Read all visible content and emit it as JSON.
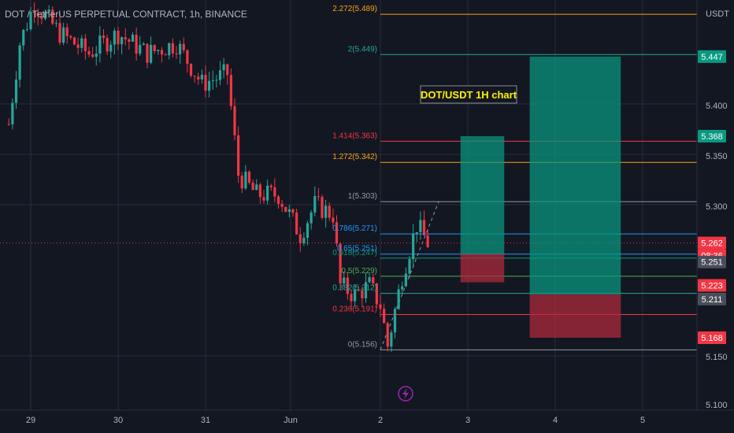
{
  "header": {
    "title": "DOT / TetherUS PERPETUAL CONTRACT, 1h, BINANCE"
  },
  "axis": {
    "unit": "USDT",
    "ticks": [
      "5.400",
      "5.350",
      "5.300",
      "5.150",
      "5.100"
    ],
    "x_labels": [
      "29",
      "30",
      "31",
      "Jun",
      "2",
      "3",
      "4",
      "5"
    ]
  },
  "annotation": {
    "text": "DOT/USDT 1H chart"
  },
  "fib_levels": [
    {
      "label": "2.272(5.489)",
      "color": "#f7a21b"
    },
    {
      "label": "2(5.449)",
      "color": "#26a69a"
    },
    {
      "label": "1.414(5.363)",
      "color": "#f23645"
    },
    {
      "label": "1.272(5.342)",
      "color": "#f7a21b"
    },
    {
      "label": "1(5.303)",
      "color": "#9598a1"
    },
    {
      "label": "0.786(5.271)",
      "color": "#2196f3"
    },
    {
      "label": "0.65(5.251)",
      "color": "#2196f3"
    },
    {
      "label": "0.618(5.247)",
      "color": "#089981"
    },
    {
      "label": "0.5(5.229)",
      "color": "#4caf50"
    },
    {
      "label": "0.382(5.212)",
      "color": "#26a69a"
    },
    {
      "label": "0.236(5.191)",
      "color": "#f23645"
    },
    {
      "label": "0(5.156)",
      "color": "#9598a1"
    }
  ],
  "price_badges": [
    {
      "text": "5.447",
      "color": "#089981"
    },
    {
      "text": "5.368",
      "color": "#089981"
    },
    {
      "text": "5.262",
      "color": "#f23645"
    },
    {
      "text": "08:36",
      "color": "#f23645"
    },
    {
      "text": "5.251",
      "color": "#4a4e5a"
    },
    {
      "text": "5.223",
      "color": "#f23645"
    },
    {
      "text": "5.211",
      "color": "#4a4e5a"
    },
    {
      "text": "5.168",
      "color": "#f23645"
    }
  ],
  "colors": {
    "background": "#131722",
    "up": "#26a69a",
    "down": "#f23645",
    "grid": "#2a2e39",
    "text": "#b2b5be"
  },
  "chart_data": {
    "type": "candlestick",
    "x_range": [
      "May 28 17:00",
      "Jun 5 23:00"
    ],
    "y_range": [
      5.1,
      5.52
    ],
    "ohlc_path": [
      [
        "May 28 18:00",
        5.38
      ],
      [
        "May 28 21:00",
        5.46
      ],
      [
        "May 29 01:00",
        5.5
      ],
      [
        "May 29 08:00",
        5.47
      ],
      [
        "May 29 16:00",
        5.45
      ],
      [
        "May 30 00:00",
        5.47
      ],
      [
        "May 30 08:00",
        5.45
      ],
      [
        "May 30 16:00",
        5.46
      ],
      [
        "May 30 23:00",
        5.42
      ],
      [
        "May 31 06:00",
        5.43
      ],
      [
        "May 31 09:00",
        5.33
      ],
      [
        "May 31 14:00",
        5.31
      ],
      [
        "May 31 20:00",
        5.31
      ],
      [
        "Jun 1 02:00",
        5.27
      ],
      [
        "Jun 1 06:00",
        5.3
      ],
      [
        "Jun 1 11:00",
        5.29
      ],
      [
        "Jun 1 13:00",
        5.22
      ],
      [
        "Jun 1 17:00",
        5.21
      ],
      [
        "Jun 1 21:00",
        5.22
      ],
      [
        "Jun 2 00:00",
        5.2
      ],
      [
        "Jun 2 02:00",
        5.16
      ],
      [
        "Jun 2 06:00",
        5.23
      ],
      [
        "Jun 2 10:00",
        5.28
      ],
      [
        "Jun 2 13:00",
        5.262
      ]
    ],
    "fibonacci": [
      {
        "ratio": 2.272,
        "price": 5.489
      },
      {
        "ratio": 2,
        "price": 5.449
      },
      {
        "ratio": 1.414,
        "price": 5.363
      },
      {
        "ratio": 1.272,
        "price": 5.342
      },
      {
        "ratio": 1,
        "price": 5.303
      },
      {
        "ratio": 0.786,
        "price": 5.271
      },
      {
        "ratio": 0.65,
        "price": 5.251
      },
      {
        "ratio": 0.618,
        "price": 5.247
      },
      {
        "ratio": 0.5,
        "price": 5.229
      },
      {
        "ratio": 0.382,
        "price": 5.212
      },
      {
        "ratio": 0.236,
        "price": 5.191
      },
      {
        "ratio": 0,
        "price": 5.156
      }
    ],
    "positions": [
      {
        "name": "long-1",
        "entry": 5.251,
        "target": 5.368,
        "stop": 5.223,
        "from": "Jun 2 22:00",
        "to": "Jun 3 10:00"
      },
      {
        "name": "long-2",
        "entry": 5.211,
        "target": 5.447,
        "stop": 5.168,
        "from": "Jun 3 17:00",
        "to": "Jun 4 18:00"
      }
    ],
    "current_price": 5.262
  }
}
